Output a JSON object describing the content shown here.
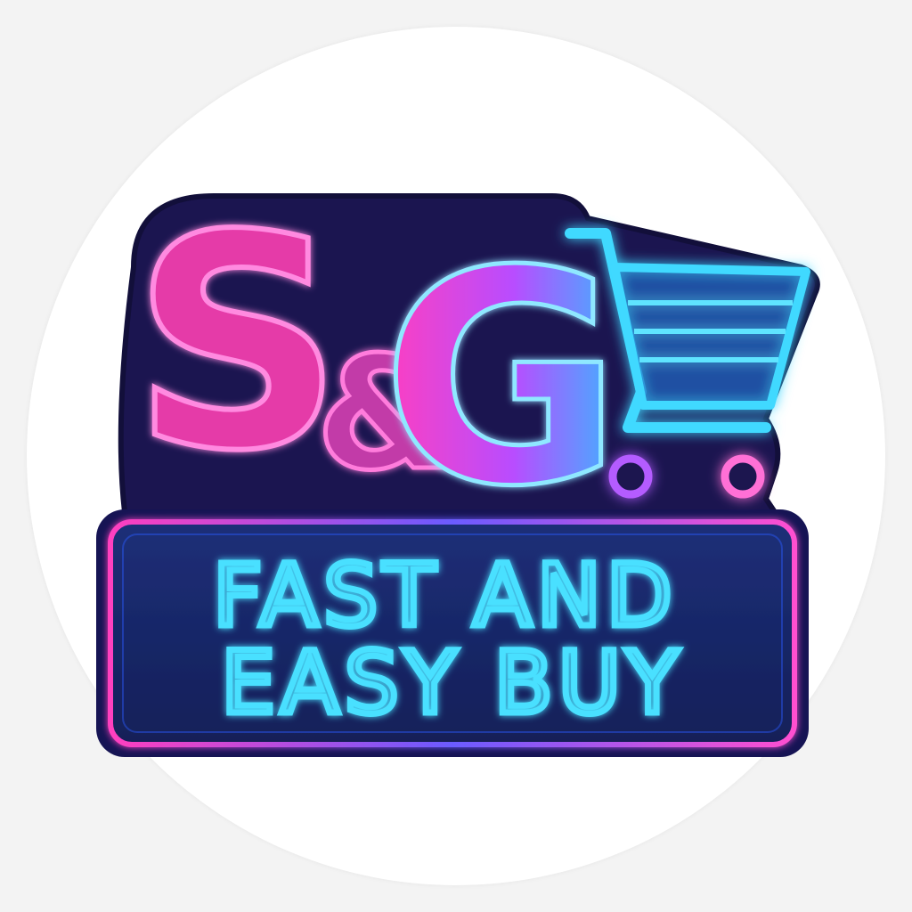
{
  "logo": {
    "letter_s": "S",
    "ampersand": "&",
    "letter_g": "G",
    "tagline_line1": "FAST AND",
    "tagline_line2": "EASY BUY"
  },
  "colors": {
    "background": "#f3f3f3",
    "disc": "#ffffff",
    "panel": "#1a2a6c",
    "panel_dark": "#121a4a",
    "outline": "#1b1550",
    "neon_pink": "#ff3fbf",
    "neon_purple": "#b84dff",
    "neon_cyan": "#39d4ff",
    "neon_blue": "#2f8cff"
  },
  "icons": {
    "cart": "shopping-cart-icon"
  }
}
